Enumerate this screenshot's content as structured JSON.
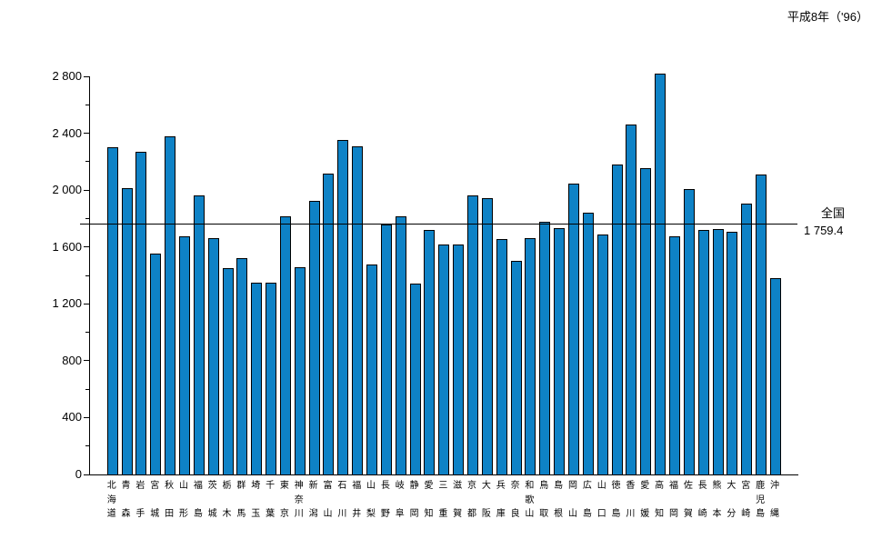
{
  "header": {
    "title": "平成8年（'96）"
  },
  "national": {
    "label": "全国",
    "value": 1759.4,
    "value_label": "1 759.4"
  },
  "y_axis": {
    "ticks": [
      {
        "value": 0,
        "label": "0"
      },
      {
        "value": 200,
        "label": ""
      },
      {
        "value": 400,
        "label": "400"
      },
      {
        "value": 600,
        "label": ""
      },
      {
        "value": 800,
        "label": "800"
      },
      {
        "value": 1000,
        "label": ""
      },
      {
        "value": 1200,
        "label": "1 200"
      },
      {
        "value": 1400,
        "label": ""
      },
      {
        "value": 1600,
        "label": "1 600"
      },
      {
        "value": 1800,
        "label": ""
      },
      {
        "value": 2000,
        "label": "2 000"
      },
      {
        "value": 2200,
        "label": ""
      },
      {
        "value": 2400,
        "label": "2 400"
      },
      {
        "value": 2600,
        "label": ""
      },
      {
        "value": 2800,
        "label": "2 800"
      }
    ]
  },
  "chart_data": {
    "type": "bar",
    "title": "平成8年（'96）",
    "xlabel": "",
    "ylabel": "",
    "ylim": [
      0,
      2800
    ],
    "grid": false,
    "bar_color": "#0e82c6",
    "bar_border_color": "#000000",
    "categories": [
      "北海道",
      "青森",
      "岩手",
      "宮城",
      "秋田",
      "山形",
      "福島",
      "茨城",
      "栃木",
      "群馬",
      "埼玉",
      "千葉",
      "東京",
      "神奈川",
      "新潟",
      "富山",
      "石川",
      "福井",
      "山梨",
      "長野",
      "岐阜",
      "静岡",
      "愛知",
      "三重",
      "滋賀",
      "京都",
      "大阪",
      "兵庫",
      "奈良",
      "和歌山",
      "鳥取",
      "島根",
      "岡山",
      "広島",
      "山口",
      "徳島",
      "香川",
      "愛媛",
      "高知",
      "福岡",
      "佐賀",
      "長崎",
      "熊本",
      "大分",
      "宮崎",
      "鹿児島",
      "沖縄"
    ],
    "values": [
      2300,
      2015,
      2270,
      1555,
      2375,
      1675,
      1960,
      1660,
      1450,
      1520,
      1350,
      1350,
      1815,
      1460,
      1925,
      2115,
      2350,
      2310,
      1475,
      1755,
      1815,
      1340,
      1720,
      1620,
      1615,
      1965,
      1945,
      1655,
      1500,
      1660,
      1775,
      1735,
      2045,
      1840,
      1685,
      2180,
      2460,
      2155,
      2820,
      1675,
      2010,
      1720,
      1725,
      1705,
      1905,
      2110,
      1380
    ],
    "reference_line": {
      "label": "全国",
      "value": 1759.4,
      "value_label": "1 759.4"
    }
  }
}
